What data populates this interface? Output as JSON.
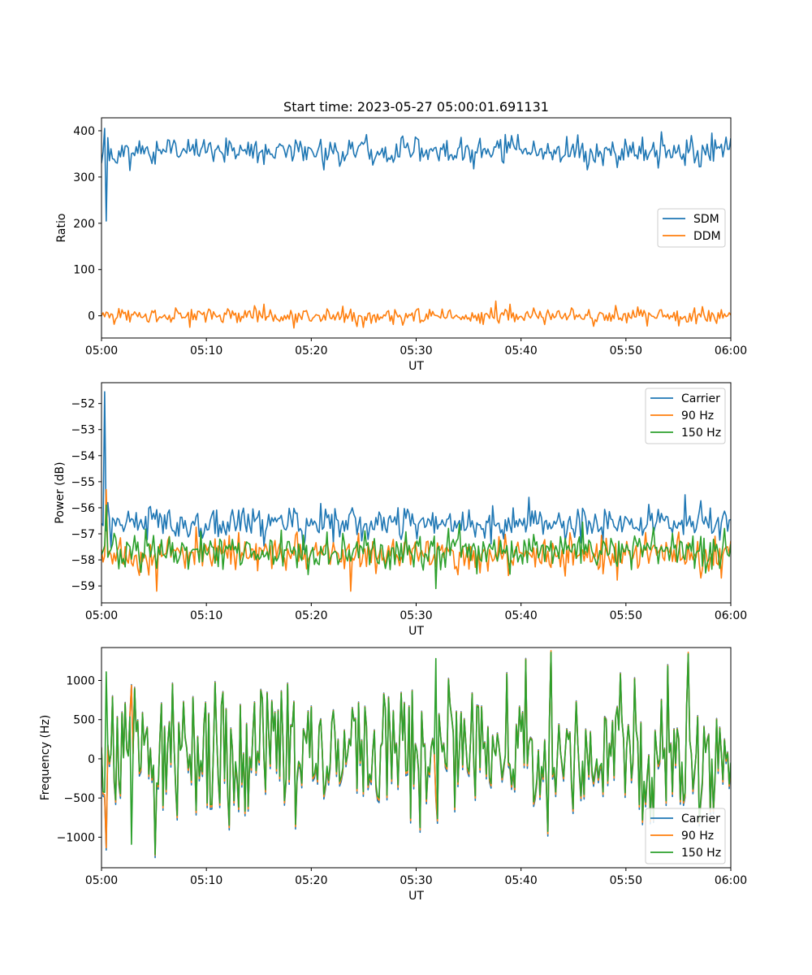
{
  "chart_data": [
    {
      "type": "line",
      "title": "Start time: 2023-05-27 05:00:01.691131",
      "xlabel": "UT",
      "ylabel": "Ratio",
      "xlim": [
        "05:00",
        "06:00"
      ],
      "ylim": [
        -48,
        428
      ],
      "x_ticks": [
        "05:00",
        "05:10",
        "05:20",
        "05:30",
        "05:40",
        "05:50",
        "06:00"
      ],
      "y_ticks": [
        0,
        100,
        200,
        300,
        400
      ],
      "legend_position": "center-right",
      "grid": false,
      "series": [
        {
          "name": "SDM",
          "color": "#1f77b4",
          "points_count": 400,
          "anchors": [
            {
              "t": "05:00:00",
              "v": 330
            },
            {
              "t": "05:00:15",
              "v": 405
            },
            {
              "t": "05:00:25",
              "v": 205
            },
            {
              "t": "05:00:40",
              "v": 385
            },
            {
              "t": "05:01:30",
              "v": 330
            },
            {
              "t": "05:20:00",
              "v": 360
            },
            {
              "t": "05:38:30",
              "v": 392
            },
            {
              "t": "05:57:00",
              "v": 322
            },
            {
              "t": "05:59:45",
              "v": 360
            }
          ],
          "mean": 357,
          "spread": 16
        },
        {
          "name": "DDM",
          "color": "#ff7f0e",
          "points_count": 400,
          "anchors": [
            {
              "t": "05:00:00",
              "v": 0
            },
            {
              "t": "05:15:30",
              "v": 25
            },
            {
              "t": "05:25:00",
              "v": -25
            },
            {
              "t": "05:39:00",
              "v": 25
            },
            {
              "t": "05:59:45",
              "v": 0
            }
          ],
          "mean": 0,
          "spread": 9
        }
      ]
    },
    {
      "type": "line",
      "title": "",
      "xlabel": "UT",
      "ylabel": "Power (dB)",
      "xlim": [
        "05:00",
        "06:00"
      ],
      "ylim": [
        -59.65,
        -51.2
      ],
      "x_ticks": [
        "05:00",
        "05:10",
        "05:20",
        "05:30",
        "05:40",
        "05:50",
        "06:00"
      ],
      "y_ticks": [
        -59,
        -58,
        -57,
        -56,
        -55,
        -54,
        -53,
        -52
      ],
      "legend_position": "upper-right",
      "grid": false,
      "series": [
        {
          "name": "Carrier",
          "color": "#1f77b4",
          "points_count": 400,
          "anchors": [
            {
              "t": "05:00:00",
              "v": -56.6
            },
            {
              "t": "05:00:20",
              "v": -51.55
            },
            {
              "t": "05:00:40",
              "v": -55.8
            },
            {
              "t": "05:01:20",
              "v": -56.7
            },
            {
              "t": "05:55:40",
              "v": -55.5
            },
            {
              "t": "05:59:45",
              "v": -56.9
            }
          ],
          "mean": -56.6,
          "spread": 0.3
        },
        {
          "name": "90 Hz",
          "color": "#ff7f0e",
          "points_count": 400,
          "anchors": [
            {
              "t": "05:00:00",
              "v": -57.6
            },
            {
              "t": "05:00:25",
              "v": -55.3
            },
            {
              "t": "05:00:50",
              "v": -57.8
            },
            {
              "t": "05:05:20",
              "v": -59.2
            },
            {
              "t": "05:23:50",
              "v": -59.2
            },
            {
              "t": "05:59:45",
              "v": -57.5
            }
          ],
          "mean": -57.75,
          "spread": 0.35
        },
        {
          "name": "150 Hz",
          "color": "#2ca02c",
          "points_count": 400,
          "anchors": [
            {
              "t": "05:00:00",
              "v": -57.8
            },
            {
              "t": "05:00:25",
              "v": -55.9
            },
            {
              "t": "05:00:50",
              "v": -57.6
            },
            {
              "t": "05:31:50",
              "v": -59.1
            },
            {
              "t": "05:59:45",
              "v": -57.8
            }
          ],
          "mean": -57.65,
          "spread": 0.35
        }
      ]
    },
    {
      "type": "line",
      "title": "",
      "xlabel": "UT",
      "ylabel": "Frequency (Hz)",
      "xlim": [
        "05:00",
        "06:00"
      ],
      "ylim": [
        -1390,
        1420
      ],
      "x_ticks": [
        "05:00",
        "05:10",
        "05:20",
        "05:30",
        "05:40",
        "05:50",
        "06:00"
      ],
      "y_ticks": [
        -1000,
        -500,
        0,
        500,
        1000
      ],
      "legend_position": "lower-right",
      "grid": false,
      "series": [
        {
          "name": "Carrier",
          "color": "#1f77b4",
          "points_count": 400,
          "offset": -60,
          "anchors": [
            {
              "t": "05:05:10",
              "v": -1260
            },
            {
              "t": "05:42:50",
              "v": 1350
            },
            {
              "t": "05:56:00",
              "v": 1330
            }
          ],
          "mean": 60,
          "spread": 420
        },
        {
          "name": "90 Hz",
          "color": "#ff7f0e",
          "points_count": 400,
          "offset": -30,
          "anchors": [],
          "mean": 60,
          "spread": 420
        },
        {
          "name": "150 Hz",
          "color": "#2ca02c",
          "points_count": 400,
          "offset": 0,
          "anchors": [
            {
              "t": "05:00:30",
              "v": 1110
            },
            {
              "t": "05:02:50",
              "v": -1090
            },
            {
              "t": "05:05:10",
              "v": -1220
            },
            {
              "t": "05:31:50",
              "v": 1280
            },
            {
              "t": "05:42:50",
              "v": 1360
            },
            {
              "t": "05:56:00",
              "v": 1340
            }
          ],
          "mean": 60,
          "spread": 420
        }
      ]
    }
  ]
}
